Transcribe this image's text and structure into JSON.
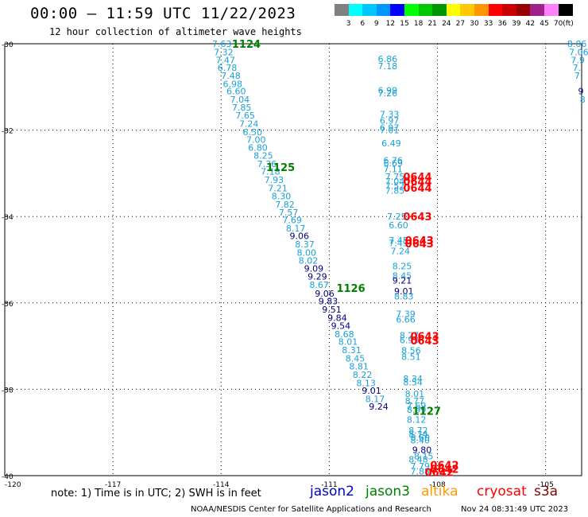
{
  "header": {
    "title": "00:00 — 11:59 UTC 11/22/2023",
    "subtitle": "12 hour collection of altimeter wave heights"
  },
  "legend": {
    "unit": "(ft)",
    "entries": [
      {
        "label": "",
        "color": "#808080"
      },
      {
        "label": "3",
        "color": "#00ffff"
      },
      {
        "label": "6",
        "color": "#00c8ff"
      },
      {
        "label": "9",
        "color": "#0096ff"
      },
      {
        "label": "12",
        "color": "#0000ff"
      },
      {
        "label": "15",
        "color": "#00ff00"
      },
      {
        "label": "18",
        "color": "#00c800"
      },
      {
        "label": "21",
        "color": "#009600"
      },
      {
        "label": "24",
        "color": "#ffff00"
      },
      {
        "label": "27",
        "color": "#ffc800"
      },
      {
        "label": "30",
        "color": "#ff9600"
      },
      {
        "label": "33",
        "color": "#ff0000"
      },
      {
        "label": "36",
        "color": "#c80000"
      },
      {
        "label": "39",
        "color": "#960000"
      },
      {
        "label": "42",
        "color": "#a0208c"
      },
      {
        "label": "45",
        "color": "#ff80ff"
      },
      {
        "label": "70",
        "color": "#000000"
      }
    ]
  },
  "map": {
    "lon_range": [
      -120,
      -104
    ],
    "lat_range": [
      -40,
      -30
    ],
    "lat_ticks": [
      "-30",
      "-32",
      "-34",
      "-36",
      "-38",
      "-40"
    ],
    "lon_ticks": [
      "-120",
      "-117",
      "-114",
      "-111",
      "-108",
      "-105"
    ],
    "colors": {
      "light": "#19a0d8",
      "dark": "#000080",
      "time_green": "#008000",
      "time_red": "#ff0000"
    },
    "track1": [
      {
        "v": "7.63",
        "lon": -114.25,
        "lat": -30.0
      },
      {
        "v": "7.32",
        "lon": -114.2,
        "lat": -30.19
      },
      {
        "v": "7.47",
        "lon": -114.15,
        "lat": -30.38
      },
      {
        "v": "6.78",
        "lon": -114.1,
        "lat": -30.55
      },
      {
        "v": "7.48",
        "lon": -114.0,
        "lat": -30.74
      },
      {
        "v": "6.98",
        "lon": -113.95,
        "lat": -30.93
      },
      {
        "v": "6.60",
        "lon": -113.85,
        "lat": -31.1
      },
      {
        "v": "7.04",
        "lon": -113.75,
        "lat": -31.29
      },
      {
        "v": "7.85",
        "lon": -113.7,
        "lat": -31.47
      },
      {
        "v": "7.65",
        "lon": -113.6,
        "lat": -31.66
      },
      {
        "v": "7.24",
        "lon": -113.5,
        "lat": -31.85
      },
      {
        "v": "6.50",
        "lon": -113.4,
        "lat": -32.04
      },
      {
        "v": "7.00",
        "lon": -113.3,
        "lat": -32.22
      },
      {
        "v": "6.80",
        "lon": -113.25,
        "lat": -32.4
      },
      {
        "v": "8.25",
        "lon": -113.1,
        "lat": -32.59
      },
      {
        "v": "7.36",
        "lon": -113.0,
        "lat": -32.78
      },
      {
        "v": "7.18",
        "lon": -112.9,
        "lat": -32.96
      },
      {
        "v": "7.93",
        "lon": -112.8,
        "lat": -33.15
      },
      {
        "v": "7.21",
        "lon": -112.7,
        "lat": -33.34
      },
      {
        "v": "8.30",
        "lon": -112.6,
        "lat": -33.53
      },
      {
        "v": "7.82",
        "lon": -112.5,
        "lat": -33.72
      },
      {
        "v": "7.57",
        "lon": -112.4,
        "lat": -33.9
      },
      {
        "v": "7.69",
        "lon": -112.3,
        "lat": -34.08
      },
      {
        "v": "8.17",
        "lon": -112.2,
        "lat": -34.27
      },
      {
        "v": "9.06",
        "lon": -112.1,
        "lat": -34.45,
        "dark": true
      },
      {
        "v": "8.37",
        "lon": -111.95,
        "lat": -34.64
      },
      {
        "v": "8.00",
        "lon": -111.9,
        "lat": -34.83
      },
      {
        "v": "8.02",
        "lon": -111.85,
        "lat": -35.02
      },
      {
        "v": "9.09",
        "lon": -111.7,
        "lat": -35.2,
        "dark": true
      },
      {
        "v": "9.29",
        "lon": -111.6,
        "lat": -35.39,
        "dark": true
      },
      {
        "v": "8.67",
        "lon": -111.55,
        "lat": -35.58
      },
      {
        "v": "9.06",
        "lon": -111.4,
        "lat": -35.78,
        "dark": true
      },
      {
        "v": "9.83",
        "lon": -111.3,
        "lat": -35.96,
        "dark": true
      },
      {
        "v": "9.51",
        "lon": -111.2,
        "lat": -36.15,
        "dark": true
      },
      {
        "v": "9.84",
        "lon": -111.05,
        "lat": -36.34,
        "dark": true
      },
      {
        "v": "9.54",
        "lon": -110.95,
        "lat": -36.53,
        "dark": true
      },
      {
        "v": "8.68",
        "lon": -110.85,
        "lat": -36.72
      },
      {
        "v": "8.01",
        "lon": -110.75,
        "lat": -36.9
      },
      {
        "v": "8.31",
        "lon": -110.65,
        "lat": -37.09
      },
      {
        "v": "8.45",
        "lon": -110.55,
        "lat": -37.28
      },
      {
        "v": "8.81",
        "lon": -110.45,
        "lat": -37.47
      },
      {
        "v": "8.22",
        "lon": -110.35,
        "lat": -37.66
      },
      {
        "v": "8.13",
        "lon": -110.25,
        "lat": -37.85
      },
      {
        "v": "9.01",
        "lon": -110.1,
        "lat": -38.03,
        "dark": true
      },
      {
        "v": "8.17",
        "lon": -110.0,
        "lat": -38.22
      },
      {
        "v": "9.24",
        "lon": -109.9,
        "lat": -38.4,
        "dark": true
      }
    ],
    "track1_times": [
      {
        "t": "1124",
        "lon": -113.7,
        "lat": -30.0
      },
      {
        "t": "1125",
        "lon": -112.75,
        "lat": -32.85
      },
      {
        "t": "1126",
        "lon": -110.8,
        "lat": -35.65
      },
      {
        "t": "1127",
        "lon": -108.7,
        "lat": -38.5
      }
    ],
    "track2": [
      {
        "v": "6.86",
        "lon": -109.65,
        "lat": -30.35
      },
      {
        "v": "7.18",
        "lon": -109.65,
        "lat": -30.52
      },
      {
        "v": "6.99",
        "lon": -109.65,
        "lat": -31.08
      },
      {
        "v": "7.26",
        "lon": -109.65,
        "lat": -31.14
      },
      {
        "v": "7.33",
        "lon": -109.6,
        "lat": -31.63
      },
      {
        "v": "6.97",
        "lon": -109.6,
        "lat": -31.78
      },
      {
        "v": "6.97",
        "lon": -109.6,
        "lat": -31.94
      },
      {
        "v": "7.01",
        "lon": -109.6,
        "lat": -32.0
      },
      {
        "v": "6.49",
        "lon": -109.55,
        "lat": -32.3
      },
      {
        "v": "6.76",
        "lon": -109.5,
        "lat": -32.7
      },
      {
        "v": "6.69",
        "lon": -109.5,
        "lat": -32.76
      },
      {
        "v": "7.11",
        "lon": -109.5,
        "lat": -32.9
      },
      {
        "v": "7.75",
        "lon": -109.45,
        "lat": -33.08
      },
      {
        "v": "7.04",
        "lon": -109.45,
        "lat": -33.19
      },
      {
        "v": "7.52",
        "lon": -109.45,
        "lat": -33.29
      },
      {
        "v": "7.85",
        "lon": -109.45,
        "lat": -33.4
      },
      {
        "v": "7.25",
        "lon": -109.4,
        "lat": -34.0
      },
      {
        "v": "6.60",
        "lon": -109.35,
        "lat": -34.2
      },
      {
        "v": "7.45",
        "lon": -109.35,
        "lat": -34.55
      },
      {
        "v": "7.49",
        "lon": -109.35,
        "lat": -34.61
      },
      {
        "v": "7.24",
        "lon": -109.3,
        "lat": -34.8
      },
      {
        "v": "8.25",
        "lon": -109.25,
        "lat": -35.15
      },
      {
        "v": "8.45",
        "lon": -109.25,
        "lat": -35.37
      },
      {
        "v": "9.21",
        "lon": -109.25,
        "lat": -35.48,
        "dark": true
      },
      {
        "v": "9.01",
        "lon": -109.2,
        "lat": -35.73,
        "dark": true
      },
      {
        "v": "8.83",
        "lon": -109.2,
        "lat": -35.85
      },
      {
        "v": "7.39",
        "lon": -109.15,
        "lat": -36.25
      },
      {
        "v": "6.66",
        "lon": -109.15,
        "lat": -36.38
      },
      {
        "v": "8.27",
        "lon": -109.05,
        "lat": -36.75
      },
      {
        "v": "6.93",
        "lon": -109.05,
        "lat": -36.86
      },
      {
        "v": "8.56",
        "lon": -109.0,
        "lat": -37.1
      },
      {
        "v": "8.51",
        "lon": -109.0,
        "lat": -37.25
      },
      {
        "v": "8.34",
        "lon": -108.95,
        "lat": -37.75
      },
      {
        "v": "8.54",
        "lon": -108.95,
        "lat": -37.84
      },
      {
        "v": "8.01",
        "lon": -108.9,
        "lat": -38.1
      },
      {
        "v": "8.77",
        "lon": -108.9,
        "lat": -38.27
      },
      {
        "v": "7.69",
        "lon": -108.85,
        "lat": -38.38
      },
      {
        "v": "8.99",
        "lon": -108.85,
        "lat": -38.47
      },
      {
        "v": "8.12",
        "lon": -108.85,
        "lat": -38.7
      },
      {
        "v": "8.72",
        "lon": -108.8,
        "lat": -38.95
      },
      {
        "v": "8.74",
        "lon": -108.8,
        "lat": -39.04
      },
      {
        "v": "8.60",
        "lon": -108.75,
        "lat": -39.12
      },
      {
        "v": "8.40",
        "lon": -108.75,
        "lat": -39.18
      },
      {
        "v": "9.80",
        "lon": -108.7,
        "lat": -39.4,
        "dark": true
      },
      {
        "v": "8.15",
        "lon": -108.65,
        "lat": -39.55
      },
      {
        "v": "8.48",
        "lon": -108.8,
        "lat": -39.62
      },
      {
        "v": "7.79",
        "lon": -108.75,
        "lat": -39.78
      },
      {
        "v": "7.88",
        "lon": -108.75,
        "lat": -39.9
      }
    ],
    "track2_times": [
      {
        "t": "0644",
        "lon": -108.95,
        "lat": -33.08
      },
      {
        "t": "0644",
        "lon": -108.95,
        "lat": -33.19
      },
      {
        "t": "0644",
        "lon": -108.95,
        "lat": -33.33
      },
      {
        "t": "0643",
        "lon": -108.95,
        "lat": -34.0
      },
      {
        "t": "0643",
        "lon": -108.9,
        "lat": -34.55
      },
      {
        "t": "0643",
        "lon": -108.9,
        "lat": -34.62
      },
      {
        "t": "0643",
        "lon": -108.75,
        "lat": -36.77
      },
      {
        "t": "0643",
        "lon": -108.75,
        "lat": -36.87
      },
      {
        "t": "0642",
        "lon": -108.2,
        "lat": -39.75
      },
      {
        "t": "0642",
        "lon": -108.2,
        "lat": -39.84
      },
      {
        "t": "0642",
        "lon": -108.35,
        "lat": -39.92
      }
    ],
    "track3": [
      {
        "v": "8.06",
        "lon": -104.4,
        "lat": -30.0
      },
      {
        "v": "7.06",
        "lon": -104.35,
        "lat": -30.19
      },
      {
        "v": "7.9",
        "lon": -104.3,
        "lat": -30.38
      },
      {
        "v": "7.",
        "lon": -104.25,
        "lat": -30.55
      },
      {
        "v": "7.",
        "lon": -104.2,
        "lat": -30.74
      },
      {
        "v": "9",
        "lon": -104.1,
        "lat": -31.1,
        "dark": true
      },
      {
        "v": "8",
        "lon": -104.05,
        "lat": -31.29
      }
    ]
  },
  "footer": {
    "note": "note: 1) Time is in UTC; 2) SWH is in feet",
    "satellites": [
      {
        "name": "jason2",
        "color": "#0000cc"
      },
      {
        "name": "jason3",
        "color": "#008000"
      },
      {
        "name": "altika",
        "color": "#ff9900"
      },
      {
        "name": "cryosat",
        "color": "#ff0000"
      },
      {
        "name": "s3a",
        "color": "#800000"
      }
    ],
    "credit": "NOAA/NESDIS Center for Satellite Applications and Research",
    "timestamp": "Nov 24 08:31:49 UTC 2023"
  }
}
